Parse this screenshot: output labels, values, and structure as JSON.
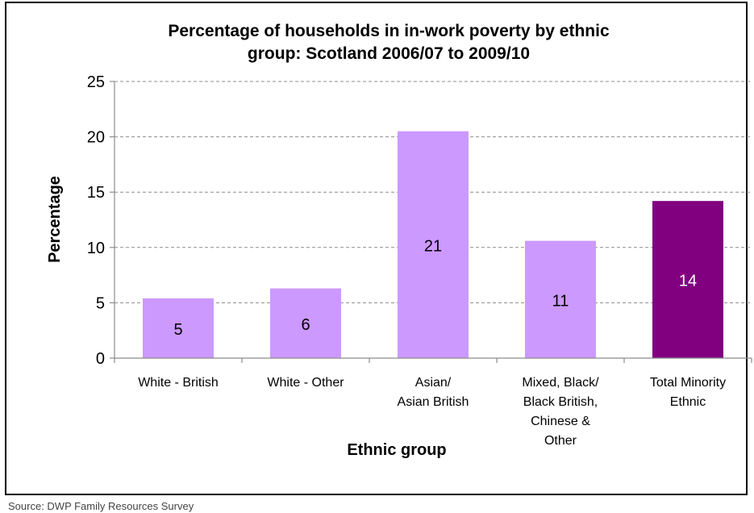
{
  "chart_data": {
    "type": "bar",
    "title": [
      "Percentage of households in in-work poverty by ethnic",
      "group: Scotland 2006/07 to 2009/10"
    ],
    "xlabel": "Ethnic group",
    "ylabel": "Percentage",
    "ylim": [
      0,
      25
    ],
    "yticks": [
      0,
      5,
      10,
      15,
      20,
      25
    ],
    "grid": true,
    "categories": [
      [
        "White - British"
      ],
      [
        "White - Other"
      ],
      [
        "Asian/",
        "Asian British"
      ],
      [
        "Mixed, Black/",
        "Black British,",
        "Chinese &",
        "Other"
      ],
      [
        "Total Minority",
        "Ethnic"
      ]
    ],
    "values": [
      5.4,
      6.3,
      20.5,
      10.6,
      14.2
    ],
    "data_labels": [
      "5",
      "6",
      "21",
      "11",
      "14"
    ],
    "colors": [
      "#cc99ff",
      "#cc99ff",
      "#cc99ff",
      "#cc99ff",
      "#800080"
    ],
    "label_colors": [
      "#000000",
      "#000000",
      "#000000",
      "#000000",
      "#ffffff"
    ]
  },
  "source": "Source: DWP Family Resources Survey"
}
